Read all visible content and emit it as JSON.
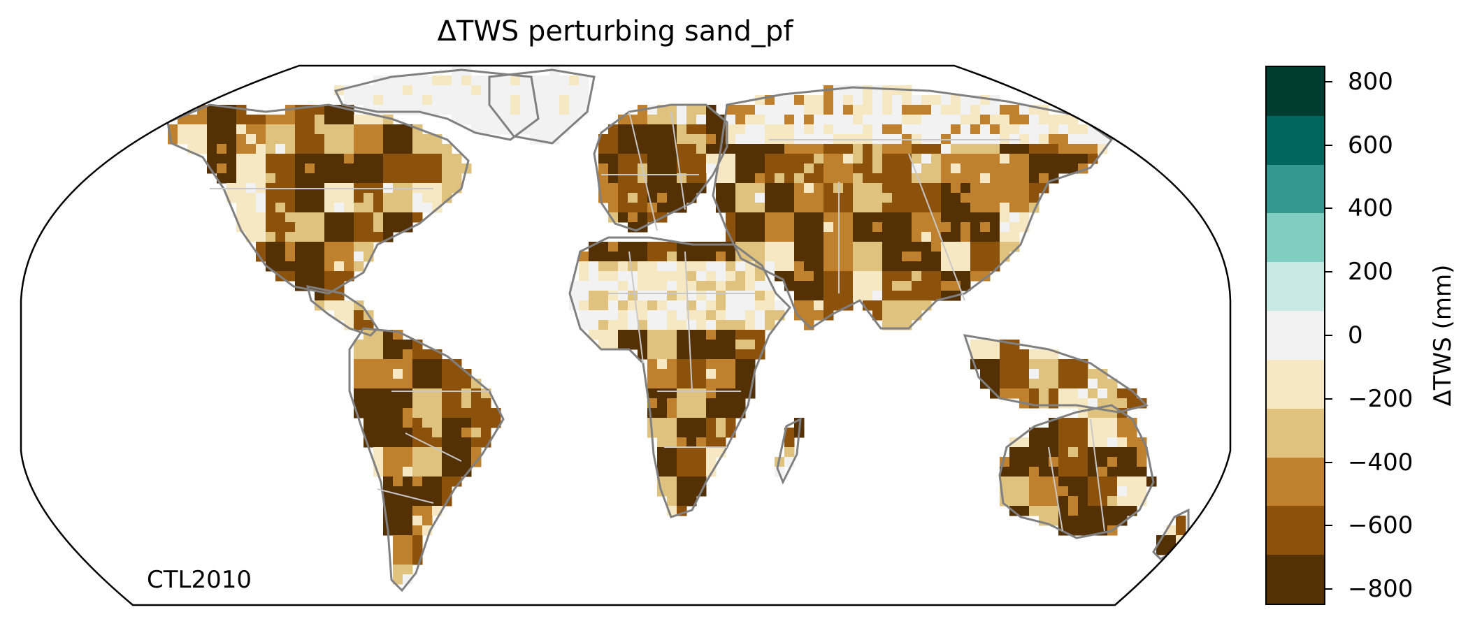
{
  "title": "ΔTWS perturbing sand_pf",
  "run_label": "CTL2010",
  "colorbar": {
    "label": "ΔTWS (mm)",
    "ticks": [
      "800",
      "600",
      "400",
      "200",
      "0",
      "−200",
      "−400",
      "−600",
      "−800"
    ],
    "tick_values": [
      800,
      600,
      400,
      200,
      0,
      -200,
      -400,
      -600,
      -800
    ],
    "range": [
      -850,
      850
    ],
    "colors": [
      "#003c30",
      "#01665e",
      "#35978f",
      "#80cdc1",
      "#c7eae5",
      "#f2f2f2",
      "#f6e8c3",
      "#dfc27d",
      "#bf812d",
      "#8c510a",
      "#543005"
    ]
  },
  "map": {
    "projection": "Robinson",
    "palette": [
      "#543005",
      "#8c510a",
      "#bf812d",
      "#dfc27d",
      "#f6e8c3",
      "#f2f2f2"
    ],
    "coastline_color": "#808080",
    "border_color": "#c8c8c8"
  }
}
